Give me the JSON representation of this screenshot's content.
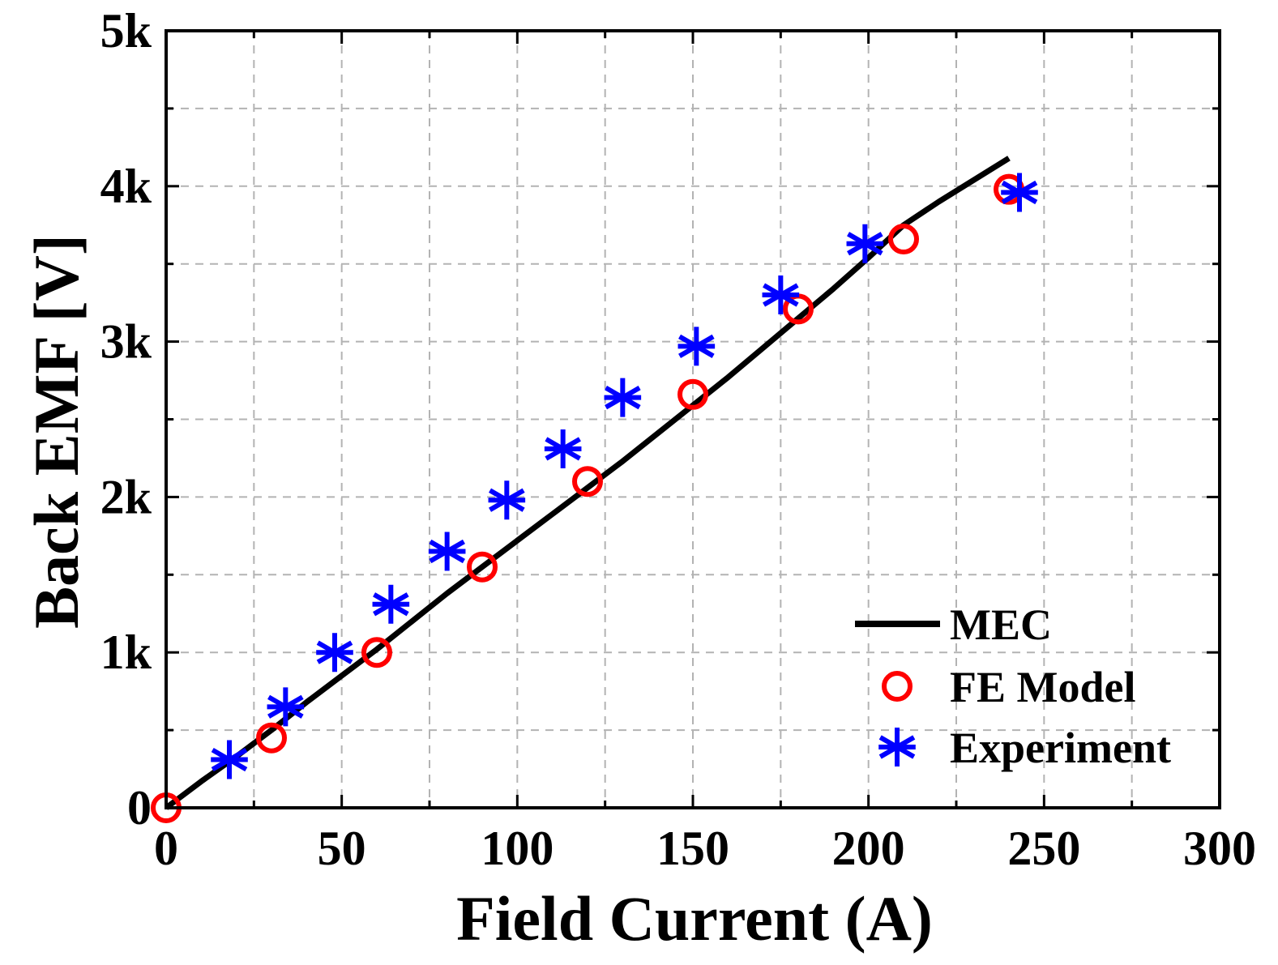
{
  "chart_data": {
    "type": "line",
    "title": "",
    "xlabel": "Field Current (A)",
    "ylabel": "Back EMF [V]",
    "xlim": [
      0,
      300
    ],
    "ylim": [
      0,
      5000
    ],
    "xticks": [
      0,
      50,
      100,
      150,
      200,
      250,
      300
    ],
    "xtick_labels": [
      "0",
      "50",
      "100",
      "150",
      "200",
      "250",
      "300"
    ],
    "yticks": [
      0,
      1000,
      2000,
      3000,
      4000,
      5000
    ],
    "ytick_labels": [
      "0",
      "1k",
      "2k",
      "3k",
      "4k",
      "5k"
    ],
    "grid": true,
    "legend_position": "bottom-right",
    "series": [
      {
        "name": "MEC",
        "style": "line",
        "color": "#000000",
        "x": [
          0,
          10,
          20,
          30,
          40,
          50,
          60,
          70,
          80,
          90,
          100,
          110,
          120,
          130,
          140,
          150,
          160,
          170,
          180,
          190,
          200,
          210,
          220,
          230,
          240
        ],
        "y": [
          0,
          170,
          330,
          500,
          680,
          850,
          1020,
          1200,
          1380,
          1550,
          1720,
          1890,
          2060,
          2230,
          2410,
          2590,
          2770,
          2960,
          3150,
          3340,
          3540,
          3750,
          3900,
          4040,
          4180
        ]
      },
      {
        "name": "FE Model",
        "style": "circle",
        "color": "#ff0000",
        "x": [
          0,
          30,
          60,
          90,
          120,
          150,
          180,
          210,
          240
        ],
        "y": [
          0,
          450,
          1000,
          1550,
          2100,
          2660,
          3210,
          3660,
          3980
        ]
      },
      {
        "name": "Experiment",
        "style": "asterisk",
        "color": "#0000ff",
        "x": [
          18,
          34,
          48,
          64,
          80,
          97,
          113,
          130,
          151,
          175,
          199,
          243
        ],
        "y": [
          310,
          650,
          1000,
          1310,
          1650,
          1980,
          2310,
          2640,
          2970,
          3300,
          3630,
          3960
        ]
      }
    ]
  }
}
